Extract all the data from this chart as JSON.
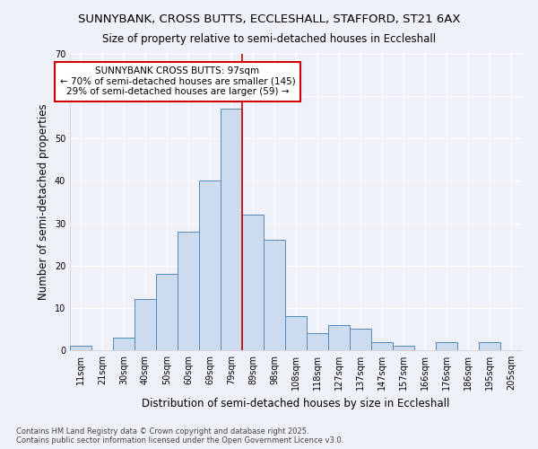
{
  "title_line1": "SUNNYBANK, CROSS BUTTS, ECCLESHALL, STAFFORD, ST21 6AX",
  "title_line2": "Size of property relative to semi-detached houses in Eccleshall",
  "xlabel": "Distribution of semi-detached houses by size in Eccleshall",
  "ylabel": "Number of semi-detached properties",
  "categories": [
    "11sqm",
    "21sqm",
    "30sqm",
    "40sqm",
    "50sqm",
    "60sqm",
    "69sqm",
    "79sqm",
    "89sqm",
    "98sqm",
    "108sqm",
    "118sqm",
    "127sqm",
    "137sqm",
    "147sqm",
    "157sqm",
    "166sqm",
    "176sqm",
    "186sqm",
    "195sqm",
    "205sqm"
  ],
  "values": [
    1,
    0,
    3,
    12,
    18,
    28,
    40,
    57,
    32,
    26,
    8,
    4,
    6,
    5,
    2,
    1,
    0,
    2,
    0,
    2,
    0
  ],
  "bar_color": "#ccdcee",
  "bar_edge_color": "#5588bb",
  "vline_index": 7.5,
  "annotation_text": "SUNNYBANK CROSS BUTTS: 97sqm\n← 70% of semi-detached houses are smaller (145)\n29% of semi-detached houses are larger (59) →",
  "annotation_box_facecolor": "#ffffff",
  "annotation_box_edgecolor": "#cc0000",
  "vline_color": "#cc0000",
  "ylim": [
    0,
    70
  ],
  "yticks": [
    0,
    10,
    20,
    30,
    40,
    50,
    60,
    70
  ],
  "background_color": "#eef2f8",
  "grid_color": "#ffffff",
  "footer": "Contains HM Land Registry data © Crown copyright and database right 2025.\nContains public sector information licensed under the Open Government Licence v3.0.",
  "title_fontsize": 9.5,
  "subtitle_fontsize": 8.5,
  "axis_label_fontsize": 8.5,
  "tick_fontsize": 7,
  "footer_fontsize": 6,
  "annot_fontsize": 7.5
}
